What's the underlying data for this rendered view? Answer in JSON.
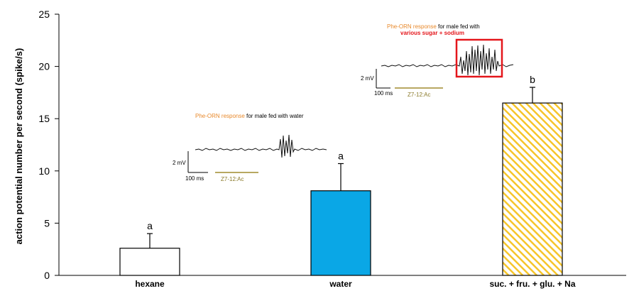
{
  "chart_data": {
    "type": "bar",
    "categories": [
      "hexane",
      "water",
      "suc. + fru. + glu. + Na"
    ],
    "values": [
      2.6,
      8.1,
      16.5
    ],
    "errors": [
      1.4,
      2.6,
      1.5
    ],
    "significance": [
      "a",
      "a",
      "b"
    ],
    "ylabel": "action potential number per second (spike/s)",
    "ylim": [
      0,
      25
    ],
    "yticks": [
      0,
      5,
      10,
      15,
      20,
      25
    ],
    "bar_colors": [
      "#ffffff",
      "#0aa7e6",
      "#f6c52a"
    ],
    "bar_patterns": [
      "solid",
      "solid",
      "diagonal-hatch"
    ],
    "grid": false
  },
  "insets": [
    {
      "title_orange": "Phe-ORN response",
      "title_rest": " for male fed with water",
      "title_line2": "",
      "scale_mv": "2 mV",
      "scale_ms": "100 ms",
      "stimulus": "Z7-12:Ac"
    },
    {
      "title_orange": "Phe-ORN response",
      "title_rest": " for male fed with",
      "title_line2": "various sugar + sodium",
      "scale_mv": "2 mV",
      "scale_ms": "100 ms",
      "stimulus": "Z7-12:Ac"
    }
  ],
  "colors": {
    "highlight_box": "#e4161b",
    "stimulus_bar": "#a08c2e",
    "title_orange": "#e8892b"
  }
}
